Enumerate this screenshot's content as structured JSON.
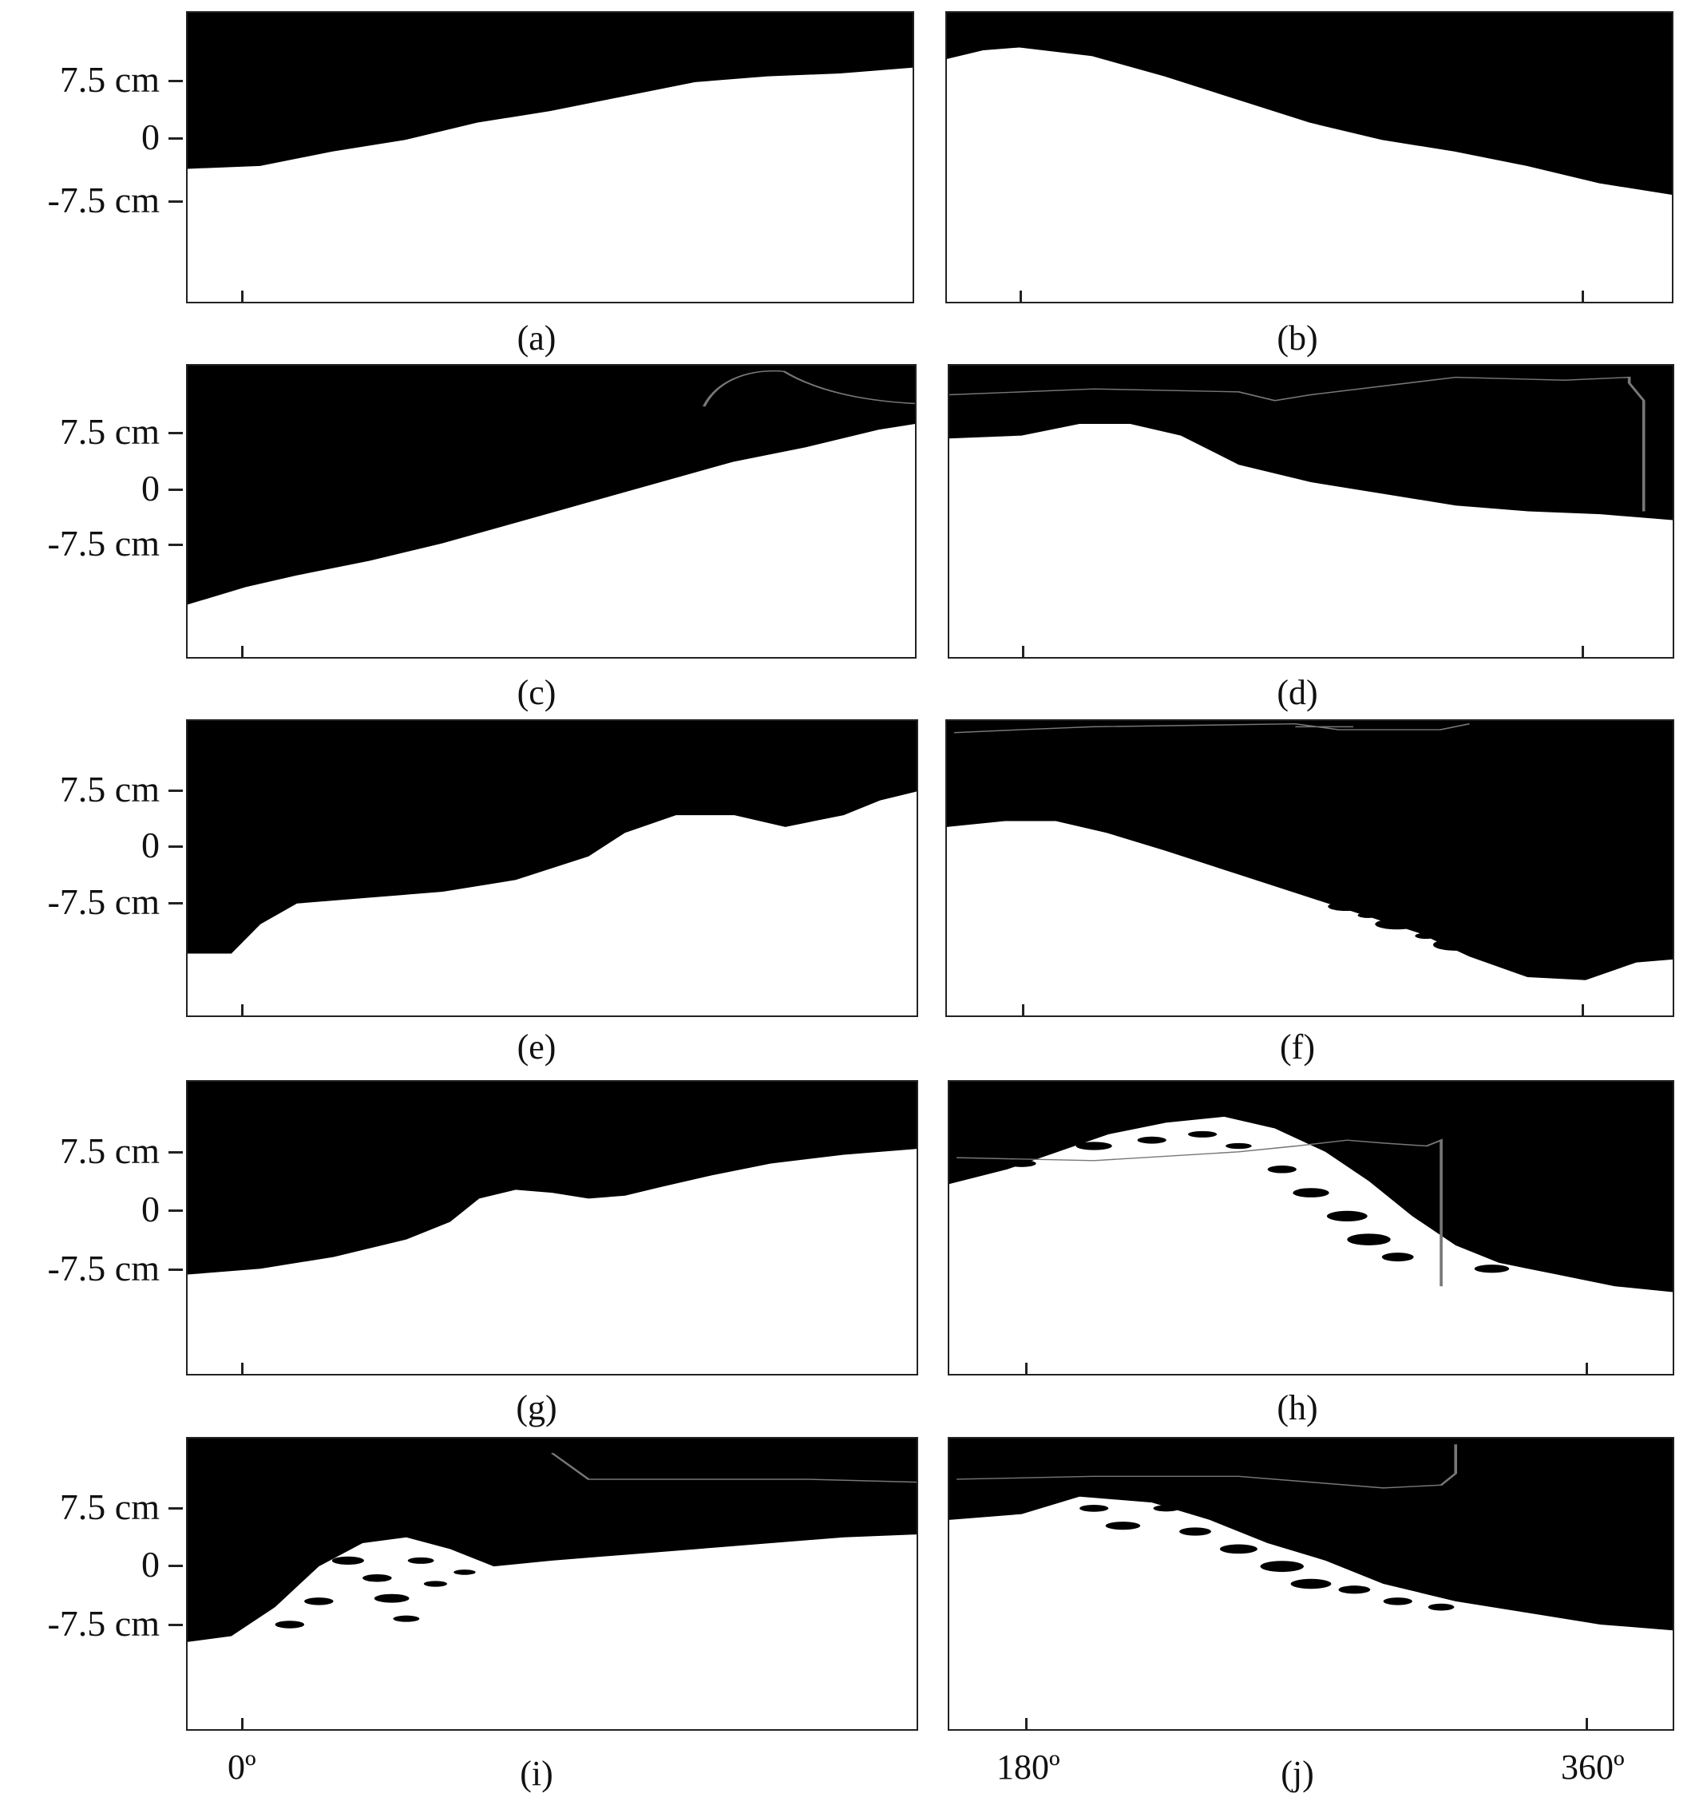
{
  "figure": {
    "y_tick_labels": [
      "7.5 cm",
      "0",
      "-7.5 cm"
    ],
    "x_tick_labels": [
      "0º",
      "180º",
      "360º"
    ],
    "panels": [
      {
        "label": "(a)"
      },
      {
        "label": "(b)"
      },
      {
        "label": "(c)"
      },
      {
        "label": "(d)"
      },
      {
        "label": "(e)"
      },
      {
        "label": "(f)"
      },
      {
        "label": "(g)"
      },
      {
        "label": "(h)"
      },
      {
        "label": "(i)"
      },
      {
        "label": "(j)"
      }
    ]
  }
}
